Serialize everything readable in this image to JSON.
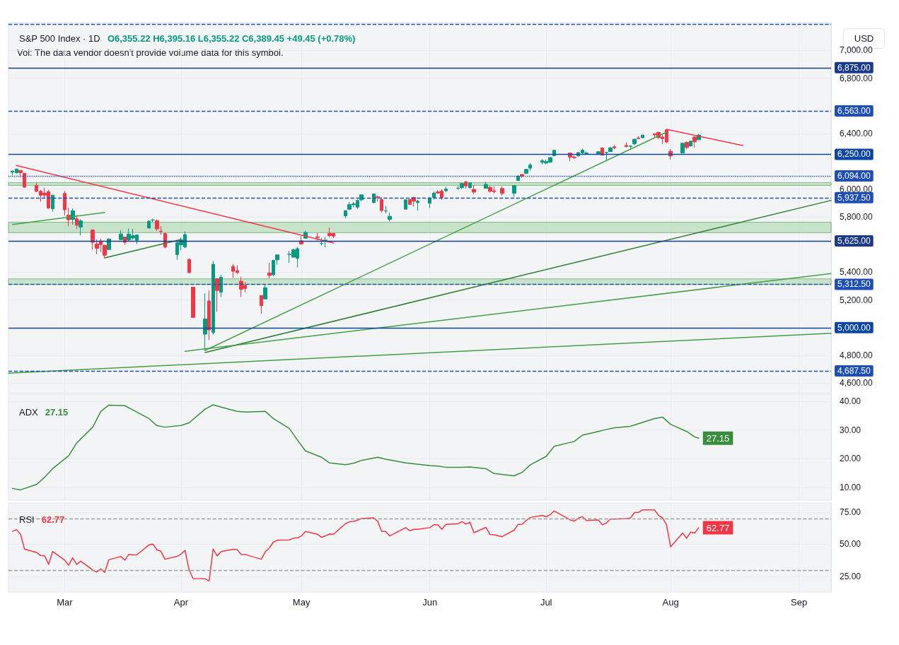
{
  "chart_data": [
    {
      "type": "candlestick",
      "title": "S&P 500 Index · 1D",
      "subtitle": "O6,355.22 H6,395.16 L6,355.22 C6,389.45 +49.45 (+0.78%)",
      "ylabel": "USD",
      "annotations": [
        "Vol: The data vendor doesn't provide volume data for this symbol."
      ],
      "x": [
        "--02-18",
        "--02-19",
        "--02-20",
        "--02-21",
        "--02-24",
        "--02-25",
        "--02-26",
        "--02-27",
        "--02-28",
        "--03-03",
        "--03-04",
        "--03-05",
        "--03-06",
        "--03-07",
        "--03-10",
        "--03-11",
        "--03-12",
        "--03-13",
        "--03-14",
        "--03-17",
        "--03-18",
        "--03-19",
        "--03-20",
        "--03-21",
        "--03-24",
        "--03-25",
        "--03-26",
        "--03-27",
        "--03-28",
        "--03-31",
        "--04-01",
        "--04-02",
        "--04-03",
        "--04-04",
        "--04-07",
        "--04-08",
        "--04-09",
        "--04-10",
        "--04-11",
        "--04-14",
        "--04-15",
        "--04-16",
        "--04-17",
        "--04-21",
        "--04-22",
        "--04-23",
        "--04-24",
        "--04-25",
        "--04-28",
        "--04-29",
        "--04-30",
        "--05-01",
        "--05-02",
        "--05-05",
        "--05-06",
        "--05-07",
        "--05-08",
        "--05-09",
        "--05-12",
        "--05-13",
        "--05-14",
        "--05-15",
        "--05-16",
        "--05-19",
        "--05-20",
        "--05-21",
        "--05-22",
        "--05-23",
        "--05-27",
        "--05-28",
        "--05-29",
        "--05-30",
        "--06-02",
        "--06-03",
        "--06-04",
        "--06-05",
        "--06-06",
        "--06-09",
        "--06-10",
        "--06-11",
        "--06-12",
        "--06-13",
        "--06-16",
        "--06-17",
        "--06-18",
        "--06-20",
        "--06-23",
        "--06-24",
        "--06-25",
        "--06-26",
        "--06-27",
        "--06-30",
        "--07-01",
        "--07-02",
        "--07-03",
        "--07-07",
        "--07-08",
        "--07-09",
        "--07-10",
        "--07-11",
        "--07-14",
        "--07-15",
        "--07-16",
        "--07-17",
        "--07-18",
        "--07-21",
        "--07-22",
        "--07-23",
        "--07-24",
        "--07-25",
        "--07-28",
        "--07-29",
        "--07-30",
        "--07-31",
        "--08-01",
        "--08-04",
        "--08-05",
        "--08-06",
        "--08-07",
        "--08-08"
      ],
      "ohlc": [
        [
          6121,
          6131,
          6099,
          6130
        ],
        [
          6117,
          6147,
          6111,
          6144
        ],
        [
          6134,
          6134,
          6084,
          6118
        ],
        [
          6114,
          6114,
          6009,
          6013
        ],
        [
          6026,
          6044,
          5977,
          5983
        ],
        [
          5983,
          5992,
          5908,
          5955
        ],
        [
          5970,
          6009,
          5932,
          5956
        ],
        [
          5981,
          5994,
          5858,
          5862
        ],
        [
          5857,
          5959,
          5837,
          5955
        ],
        [
          5968,
          5986,
          5810,
          5850
        ],
        [
          5811,
          5865,
          5732,
          5778
        ],
        [
          5781,
          5860,
          5743,
          5843
        ],
        [
          5785,
          5812,
          5711,
          5739
        ],
        [
          5726,
          5783,
          5666,
          5770
        ],
        [
          5705,
          5705,
          5564,
          5615
        ],
        [
          5603,
          5636,
          5529,
          5572
        ],
        [
          5624,
          5642,
          5546,
          5599
        ],
        [
          5594,
          5597,
          5505,
          5522
        ],
        [
          5563,
          5645,
          5563,
          5639
        ],
        [
          5635,
          5703,
          5630,
          5675
        ],
        [
          5654,
          5654,
          5597,
          5615
        ],
        [
          5632,
          5715,
          5622,
          5675
        ],
        [
          5646,
          5712,
          5631,
          5663
        ],
        [
          5630,
          5670,
          5603,
          5668
        ],
        [
          5718,
          5776,
          5718,
          5768
        ],
        [
          5776,
          5786,
          5760,
          5777
        ],
        [
          5772,
          5780,
          5698,
          5712
        ],
        [
          5696,
          5732,
          5670,
          5693
        ],
        [
          5679,
          5685,
          5572,
          5581
        ],
        [
          5527,
          5621,
          5489,
          5612
        ],
        [
          5597,
          5651,
          5558,
          5633
        ],
        [
          5581,
          5695,
          5574,
          5671
        ],
        [
          5492,
          5500,
          5390,
          5397
        ],
        [
          5292,
          5292,
          5069,
          5074
        ],
        [
          4953,
          5247,
          4835,
          5062
        ],
        [
          5193,
          5267,
          4910,
          4983
        ],
        [
          4965,
          5481,
          4950,
          5457
        ],
        [
          5353,
          5353,
          5115,
          5268
        ],
        [
          5256,
          5381,
          5220,
          5363
        ],
        [
          5442,
          5459,
          5358,
          5406
        ],
        [
          5411,
          5450,
          5387,
          5397
        ],
        [
          5335,
          5367,
          5221,
          5276
        ],
        [
          5305,
          5328,
          5255,
          5283
        ],
        [
          5232,
          5232,
          5101,
          5158
        ],
        [
          5207,
          5309,
          5207,
          5288
        ],
        [
          5395,
          5469,
          5355,
          5376
        ],
        [
          5381,
          5490,
          5371,
          5485
        ],
        [
          5489,
          5528,
          5455,
          5525
        ],
        [
          5529,
          5553,
          5468,
          5529
        ],
        [
          5508,
          5571,
          5505,
          5561
        ],
        [
          5500,
          5581,
          5434,
          5569
        ],
        [
          5626,
          5659,
          5597,
          5604
        ],
        [
          5645,
          5700,
          5645,
          5687
        ],
        [
          5655,
          5684,
          5629,
          5650
        ],
        [
          5606,
          5649,
          5592,
          5607
        ],
        [
          5627,
          5655,
          5579,
          5631
        ],
        [
          5680,
          5720,
          5650,
          5664
        ],
        [
          5679,
          5683,
          5645,
          5660
        ],
        [
          5807,
          5845,
          5788,
          5844
        ],
        [
          5854,
          5906,
          5847,
          5887
        ],
        [
          5886,
          5906,
          5868,
          5893
        ],
        [
          5869,
          5925,
          5855,
          5917
        ],
        [
          5922,
          5959,
          5911,
          5958
        ],
        [
          5902,
          5968,
          5896,
          5964
        ],
        [
          5944,
          5953,
          5909,
          5940
        ],
        [
          5924,
          5938,
          5831,
          5845
        ],
        [
          5841,
          5878,
          5825,
          5842
        ],
        [
          5781,
          5829,
          5767,
          5803
        ],
        [
          5854,
          5922,
          5854,
          5922
        ],
        [
          5925,
          5929,
          5886,
          5889
        ],
        [
          5939,
          5943,
          5873,
          5912
        ],
        [
          5903,
          5922,
          5843,
          5912
        ],
        [
          5897,
          5938,
          5862,
          5936
        ],
        [
          5938,
          5981,
          5926,
          5970
        ],
        [
          5979,
          5990,
          5966,
          5971
        ],
        [
          5985,
          5999,
          5921,
          5939
        ],
        [
          5987,
          6017,
          5978,
          6000
        ],
        [
          6004,
          6021,
          5994,
          6006
        ],
        [
          6009,
          6043,
          6000,
          6039
        ],
        [
          6050,
          6059,
          6003,
          6022
        ],
        [
          6010,
          6045,
          6003,
          6045
        ],
        [
          5997,
          6026,
          5963,
          5977
        ],
        [
          6005,
          6051,
          6005,
          6033
        ],
        [
          6012,
          6024,
          5974,
          5983
        ],
        [
          5987,
          6019,
          5967,
          5981
        ],
        [
          6004,
          6018,
          5952,
          5968
        ],
        [
          5970,
          6028,
          5943,
          6025
        ],
        [
          6061,
          6101,
          6060,
          6092
        ],
        [
          6105,
          6108,
          6079,
          6092
        ],
        [
          6113,
          6146,
          6107,
          6141
        ],
        [
          6150,
          6187,
          6132,
          6173
        ],
        [
          6193,
          6215,
          6178,
          6205
        ],
        [
          6187,
          6211,
          6177,
          6198
        ],
        [
          6194,
          6227,
          6188,
          6227
        ],
        [
          6240,
          6284,
          6240,
          6279
        ],
        [
          6259,
          6263,
          6201,
          6230
        ],
        [
          6230,
          6242,
          6217,
          6226
        ],
        [
          6239,
          6265,
          6234,
          6263
        ],
        [
          6261,
          6290,
          6251,
          6280
        ],
        [
          6256,
          6270,
          6247,
          6260
        ],
        [
          6255,
          6273,
          6251,
          6269
        ],
        [
          6295,
          6302,
          6242,
          6244
        ],
        [
          6262,
          6266,
          6201,
          6264
        ],
        [
          6270,
          6304,
          6268,
          6297
        ],
        [
          6304,
          6316,
          6286,
          6297
        ],
        [
          6314,
          6336,
          6300,
          6306
        ],
        [
          6307,
          6310,
          6282,
          6310
        ],
        [
          6327,
          6359,
          6315,
          6359
        ],
        [
          6368,
          6381,
          6360,
          6363
        ],
        [
          6370,
          6390,
          6365,
          6389
        ],
        [
          6398,
          6401,
          6375,
          6390
        ],
        [
          6409,
          6409,
          6360,
          6371
        ],
        [
          6375,
          6392,
          6323,
          6363
        ],
        [
          6427,
          6428,
          6331,
          6339
        ],
        [
          6271,
          6288,
          6212,
          6238
        ],
        [
          6260,
          6330,
          6260,
          6330
        ],
        [
          6336,
          6344,
          6289,
          6299
        ],
        [
          6310,
          6349,
          6306,
          6345
        ],
        [
          6375,
          6380,
          6299,
          6340
        ],
        [
          6355.22,
          6395.16,
          6355.22,
          6389.45
        ]
      ],
      "series": [
        {
          "type": "line",
          "color": "#f23645",
          "x": [
            "--02-19",
            "--05-09"
          ],
          "values": [
            6169,
            5610
          ]
        },
        {
          "type": "line",
          "color": "#f23645",
          "x": [
            "--07-31",
            "--08-19"
          ],
          "values": [
            6431,
            6313
          ]
        },
        {
          "type": "line",
          "color": "#43a047",
          "x": [
            "--04-07",
            "--07-31"
          ],
          "values": [
            4836,
            6410
          ]
        },
        {
          "type": "line",
          "color": "#2e7d32",
          "x": [
            "--04-07",
            "--09-10"
          ],
          "values": [
            4821,
            5918
          ]
        },
        {
          "type": "line",
          "color": "#43a047",
          "x": [
            "--04-02",
            "--09-10"
          ],
          "values": [
            4830,
            5390
          ]
        },
        {
          "type": "line",
          "color": "#43a047",
          "x": [
            "--02-17",
            "--09-10"
          ],
          "values": [
            4672,
            4959
          ]
        },
        {
          "type": "line",
          "color": "#43a047",
          "x": [
            "--02-18",
            "--03-13"
          ],
          "values": [
            5744,
            5831
          ]
        },
        {
          "type": "line",
          "color": "#2e7d32",
          "x": [
            "--03-13",
            "--04-01"
          ],
          "values": [
            5503,
            5636
          ]
        }
      ],
      "xlim": [
        "--02-17",
        "--09-10"
      ],
      "xticks": [
        {
          "value": "--03-03",
          "label": null
        },
        {
          "value": "--04-01",
          "label": null
        },
        {
          "value": "--05-01",
          "label": null
        },
        {
          "value": "--06-02",
          "label": null
        },
        {
          "value": "--07-01",
          "label": null
        },
        {
          "value": "--08-01",
          "label": null
        },
        {
          "value": "--09-02",
          "label": null
        }
      ],
      "ylim": [
        4525,
        7200
      ],
      "yticks": [
        {
          "value": 4600,
          "label": "4,600.00"
        },
        {
          "value": 4800,
          "label": "4,800.00"
        },
        {
          "value": 5200,
          "label": "5,200.00"
        },
        {
          "value": 5400,
          "label": "5,400.00"
        },
        {
          "value": 5800,
          "label": "5,800.00"
        },
        {
          "value": 6000,
          "label": "6,000.00"
        },
        {
          "value": 6400,
          "label": "6,400.00"
        },
        {
          "value": 6800,
          "label": "6,800.00"
        },
        {
          "value": 7000,
          "label": "7,000.00"
        }
      ],
      "ref_lines": [
        {
          "axis": "y",
          "value": 7187.5,
          "label": null,
          "color": "#1e4fb4",
          "line_style": "dashed"
        },
        {
          "axis": "y",
          "value": 6875,
          "label": "6,875.00",
          "color": "#1a3a8a",
          "line_style": "solid"
        },
        {
          "axis": "y",
          "value": 6563,
          "label": "6,563.00",
          "color": "#1e4fb4",
          "line_style": "dashed"
        },
        {
          "axis": "y",
          "value": 6250,
          "label": "6,250.00",
          "color": "#0d47a1",
          "line_style": "solid"
        },
        {
          "axis": "y",
          "value": 6094,
          "label": "6,094.00",
          "color": "#1e4fb4",
          "line_style": "dotted"
        },
        {
          "axis": "y",
          "value": 5937.5,
          "label": "5,937.50",
          "color": "#1e4fb4",
          "line_style": "dashed"
        },
        {
          "axis": "y",
          "value": 5625,
          "label": "5,625.00",
          "color": "#1a3a8a",
          "line_style": "solid"
        },
        {
          "axis": "y",
          "value": 5312.5,
          "label": "5,312.50",
          "color": "#1e4fb4",
          "line_style": "dashed"
        },
        {
          "axis": "y",
          "value": 5000,
          "label": "5,000.00",
          "color": "#0d47a1",
          "line_style": "solid"
        },
        {
          "axis": "y",
          "value": 4687.5,
          "label": "4,687.50",
          "color": "#1e4fb4",
          "line_style": "dashed"
        }
      ],
      "bands": [
        {
          "axis": "y",
          "from": 6026,
          "to": 6046,
          "color": "#a5d6a7"
        },
        {
          "axis": "y",
          "from": 5685,
          "to": 5760,
          "color": "#a5d6a7"
        },
        {
          "axis": "y",
          "from": 5312,
          "to": 5352,
          "color": "#a5d6a7"
        }
      ],
      "grid": true,
      "tick_labels": "y"
    },
    {
      "type": "line",
      "title": "ADX",
      "subtitle": "27.15",
      "color": "#388e3c",
      "x": [
        "--02-18",
        "--02-20",
        "--02-24",
        "--02-26",
        "--02-28",
        "--03-04",
        "--03-06",
        "--03-10",
        "--03-12",
        "--03-14",
        "--03-18",
        "--03-20",
        "--03-24",
        "--03-26",
        "--03-28",
        "--04-01",
        "--04-03",
        "--04-07",
        "--04-09",
        "--04-11",
        "--04-15",
        "--04-17",
        "--04-22",
        "--04-24",
        "--04-28",
        "--04-30",
        "--05-02",
        "--05-06",
        "--05-08",
        "--05-12",
        "--05-14",
        "--05-16",
        "--05-20",
        "--05-22",
        "--05-27",
        "--05-29",
        "--06-02",
        "--06-04",
        "--06-06",
        "--06-10",
        "--06-12",
        "--06-16",
        "--06-18",
        "--06-23",
        "--06-25",
        "--06-27",
        "--07-01",
        "--07-03",
        "--07-08",
        "--07-10",
        "--07-14",
        "--07-16",
        "--07-18",
        "--07-22",
        "--07-24",
        "--07-28",
        "--07-30",
        "--08-01",
        "--08-05",
        "--08-07",
        "--08-08"
      ],
      "values": [
        9.6,
        9.1,
        11,
        13.5,
        16.5,
        21,
        25.5,
        31,
        36.5,
        38.7,
        38.5,
        37,
        34,
        31.5,
        31,
        31.6,
        32.5,
        37.3,
        38.8,
        38,
        36.5,
        36.3,
        36.5,
        34,
        30.5,
        26.5,
        22.7,
        20.5,
        18.5,
        17.9,
        18.4,
        19.4,
        20.5,
        19.8,
        18.5,
        18.2,
        17.6,
        17.4,
        17,
        17,
        17.1,
        16.5,
        14.8,
        14,
        15.2,
        17.8,
        20.8,
        24.3,
        26,
        28.2,
        29.5,
        30.2,
        30.8,
        31.3,
        32.2,
        34,
        34.5,
        32,
        29.5,
        27.6,
        27.15
      ],
      "value_labels": [
        null,
        null,
        null,
        null,
        null,
        null,
        null,
        null,
        null,
        null,
        null,
        null,
        null,
        null,
        null,
        null,
        null,
        null,
        null,
        null,
        null,
        null,
        null,
        null,
        null,
        null,
        null,
        null,
        null,
        null,
        null,
        null,
        null,
        null,
        null,
        null,
        null,
        null,
        null,
        null,
        null,
        null,
        null,
        null,
        null,
        null,
        null,
        null,
        null,
        null,
        null,
        null,
        null,
        null,
        null,
        null,
        null,
        null,
        null,
        null,
        "27.15"
      ],
      "xlim": [
        "--02-17",
        "--09-10"
      ],
      "xticks": [
        {
          "value": "--03-03",
          "label": null
        },
        {
          "value": "--04-01",
          "label": null
        },
        {
          "value": "--05-01",
          "label": null
        },
        {
          "value": "--06-02",
          "label": null
        },
        {
          "value": "--07-01",
          "label": null
        },
        {
          "value": "--08-01",
          "label": null
        },
        {
          "value": "--09-02",
          "label": null
        }
      ],
      "ylim": [
        5.5,
        42.5
      ],
      "yticks": [
        {
          "value": 10,
          "label": "10.00"
        },
        {
          "value": 20,
          "label": "20.00"
        },
        {
          "value": 30,
          "label": "30.00"
        },
        {
          "value": 40,
          "label": "40.00"
        }
      ],
      "grid": true,
      "tick_labels": "y"
    },
    {
      "type": "line",
      "title": "RSI",
      "subtitle": "62.77",
      "color": "#f23645",
      "x": [
        "--02-18",
        "--02-19",
        "--02-20",
        "--02-21",
        "--02-24",
        "--02-25",
        "--02-26",
        "--02-27",
        "--02-28",
        "--03-03",
        "--03-04",
        "--03-05",
        "--03-06",
        "--03-07",
        "--03-10",
        "--03-11",
        "--03-12",
        "--03-13",
        "--03-14",
        "--03-17",
        "--03-18",
        "--03-19",
        "--03-20",
        "--03-21",
        "--03-24",
        "--03-25",
        "--03-26",
        "--03-27",
        "--03-28",
        "--03-31",
        "--04-01",
        "--04-02",
        "--04-03",
        "--04-04",
        "--04-07",
        "--04-08",
        "--04-09",
        "--04-10",
        "--04-11",
        "--04-14",
        "--04-15",
        "--04-16",
        "--04-17",
        "--04-21",
        "--04-22",
        "--04-23",
        "--04-24",
        "--04-25",
        "--04-28",
        "--04-29",
        "--04-30",
        "--05-01",
        "--05-02",
        "--05-05",
        "--05-06",
        "--05-07",
        "--05-08",
        "--05-09",
        "--05-12",
        "--05-13",
        "--05-14",
        "--05-15",
        "--05-16",
        "--05-19",
        "--05-20",
        "--05-21",
        "--05-22",
        "--05-23",
        "--05-27",
        "--05-28",
        "--05-29",
        "--05-30",
        "--06-02",
        "--06-03",
        "--06-04",
        "--06-05",
        "--06-06",
        "--06-09",
        "--06-10",
        "--06-11",
        "--06-12",
        "--06-13",
        "--06-16",
        "--06-17",
        "--06-18",
        "--06-20",
        "--06-23",
        "--06-24",
        "--06-25",
        "--06-26",
        "--06-27",
        "--06-30",
        "--07-01",
        "--07-02",
        "--07-03",
        "--07-07",
        "--07-08",
        "--07-09",
        "--07-10",
        "--07-11",
        "--07-14",
        "--07-15",
        "--07-16",
        "--07-17",
        "--07-18",
        "--07-21",
        "--07-22",
        "--07-23",
        "--07-24",
        "--07-25",
        "--07-28",
        "--07-29",
        "--07-30",
        "--07-31",
        "--08-01",
        "--08-04",
        "--08-05",
        "--08-06",
        "--08-07",
        "--08-08"
      ],
      "values": [
        60.0,
        61.4,
        57.8,
        46.3,
        43.7,
        41.3,
        41.1,
        34.4,
        44.4,
        37.7,
        33.7,
        39.5,
        34.4,
        36.9,
        30.0,
        28.5,
        30.9,
        28.2,
        38.0,
        40.6,
        37.7,
        42.2,
        41.7,
        41.9,
        49.5,
        50.1,
        45.7,
        44.6,
        38.4,
        40.6,
        42.4,
        45.3,
        30.4,
        23.4,
        23.2,
        21.6,
        46.3,
        41.0,
        44.4,
        46.1,
        45.9,
        42.1,
        42.1,
        38.4,
        44.2,
        47.2,
        51.6,
        53.2,
        53.4,
        54.7,
        55.0,
        56.5,
        60.0,
        57.8,
        55.4,
        56.5,
        57.9,
        57.8,
        66.0,
        67.4,
        67.8,
        68.7,
        70.0,
        70.5,
        67.8,
        60.0,
        60.0,
        56.5,
        62.9,
        60.5,
        61.6,
        61.6,
        62.9,
        65.1,
        65.1,
        61.6,
        65.4,
        65.8,
        67.6,
        65.6,
        67.1,
        59.0,
        63.1,
        57.6,
        57.4,
        55.9,
        60.9,
        65.4,
        65.6,
        68.4,
        70.7,
        72.4,
        71.3,
        72.9,
        75.8,
        68.9,
        68.0,
        70.2,
        71.5,
        68.5,
        68.9,
        65.1,
        66.5,
        69.5,
        69.5,
        70.0,
        70.4,
        74.6,
        74.7,
        76.6,
        76.6,
        72.4,
        70.5,
        65.1,
        48.1,
        58.7,
        54.7,
        59.4,
        58.7,
        62.77
      ],
      "value_labels": [
        null,
        null,
        null,
        null,
        null,
        null,
        null,
        null,
        null,
        null,
        null,
        null,
        null,
        null,
        null,
        null,
        null,
        null,
        null,
        null,
        null,
        null,
        null,
        null,
        null,
        null,
        null,
        null,
        null,
        null,
        null,
        null,
        null,
        null,
        null,
        null,
        null,
        null,
        null,
        null,
        null,
        null,
        null,
        null,
        null,
        null,
        null,
        null,
        null,
        null,
        null,
        null,
        null,
        null,
        null,
        null,
        null,
        null,
        null,
        null,
        null,
        null,
        null,
        null,
        null,
        null,
        null,
        null,
        null,
        null,
        null,
        null,
        null,
        null,
        null,
        null,
        null,
        null,
        null,
        null,
        null,
        null,
        null,
        null,
        null,
        null,
        null,
        null,
        null,
        null,
        null,
        null,
        null,
        null,
        null,
        null,
        null,
        null,
        null,
        null,
        null,
        null,
        null,
        null,
        null,
        null,
        null,
        null,
        null,
        null,
        null,
        null,
        null,
        null,
        null,
        null,
        null,
        null,
        null,
        "62.77"
      ],
      "xlim": [
        "--02-17",
        "--09-10"
      ],
      "xticks": [
        {
          "value": "--03-03",
          "label": "Mar"
        },
        {
          "value": "--04-01",
          "label": "Apr"
        },
        {
          "value": "--05-01",
          "label": "May"
        },
        {
          "value": "--06-02",
          "label": "Jun"
        },
        {
          "value": "--07-01",
          "label": "Jul"
        },
        {
          "value": "--08-01",
          "label": "Aug"
        },
        {
          "value": "--09-02",
          "label": "Sep"
        }
      ],
      "ylim": [
        13,
        82
      ],
      "yticks": [
        {
          "value": 25,
          "label": "25.00"
        },
        {
          "value": 50,
          "label": "50.00"
        },
        {
          "value": 75,
          "label": "75.00"
        }
      ],
      "ref_lines": [
        {
          "axis": "y",
          "value": 70,
          "label": null,
          "color": "#9e9e9e",
          "line_style": "dashed"
        },
        {
          "axis": "y",
          "value": 30,
          "label": null,
          "color": "#9e9e9e",
          "line_style": "dashed"
        }
      ],
      "grid": true
    }
  ]
}
